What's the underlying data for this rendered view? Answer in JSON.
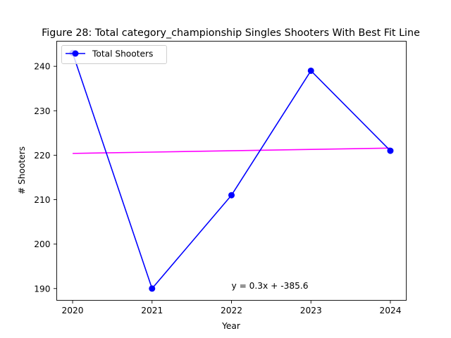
{
  "chart_data": {
    "type": "line",
    "title": "Figure 28: Total category_championship Singles Shooters With Best Fit Line",
    "xlabel": "Year",
    "ylabel": "# Shooters",
    "x": [
      2020,
      2021,
      2022,
      2023,
      2024
    ],
    "xlim": [
      2019.8,
      2024.2
    ],
    "ylim": [
      187.35,
      245.65
    ],
    "x_ticks": [
      "2020",
      "2021",
      "2022",
      "2023",
      "2024"
    ],
    "y_ticks": [
      190,
      200,
      210,
      220,
      230,
      240
    ],
    "grid": false,
    "legend_position": "upper-left",
    "series": [
      {
        "name": "Total Shooters",
        "values": [
          243,
          190,
          211,
          239,
          221
        ],
        "color": "#0000ff",
        "marker": "circle",
        "in_legend": true
      },
      {
        "name": "Best Fit Line",
        "values": [
          220.4,
          220.7,
          221.0,
          221.3,
          221.6
        ],
        "color": "#ff00ff",
        "marker": "none",
        "in_legend": false
      }
    ],
    "annotation": {
      "text": "y = 0.3x + -385.6",
      "x": 2022,
      "y": 190
    }
  }
}
